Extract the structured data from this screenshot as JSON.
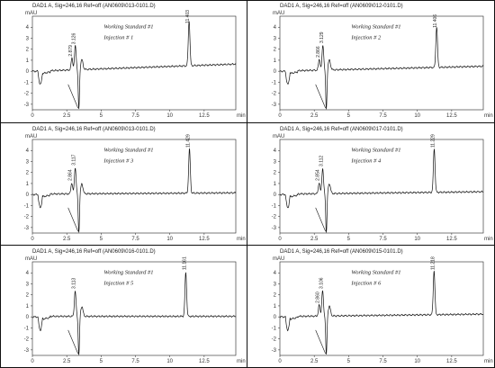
{
  "chart_data": [
    {
      "type": "line",
      "header": "DAD1 A, Sig=246,16 Ref=off (AN0609\\013-0101.D)",
      "ylabel": "mAU",
      "xlabel": "min",
      "annotation": [
        "Working Standard #1",
        "Injection # 1"
      ],
      "xlim": [
        0,
        14.8
      ],
      "ylim": [
        -3.5,
        5
      ],
      "xticks": [
        "0",
        "2.5",
        "5",
        "7.5",
        "10",
        "12.5"
      ],
      "yticks": [
        "-3",
        "-2",
        "-1",
        "0",
        "1",
        "2",
        "3",
        "4"
      ],
      "peaks": [
        {
          "rt": 2.879,
          "height": 1.1,
          "label": "2.879"
        },
        {
          "rt": 3.126,
          "height": 2.2,
          "label": "3.126"
        },
        {
          "rt": 11.403,
          "height": 4.1,
          "label": "11.403"
        }
      ],
      "baseline_end": 0.6
    },
    {
      "type": "line",
      "header": "DAD1 A, Sig=246,16 Ref=off (AN0609\\012-0101.D)",
      "ylabel": "mAU",
      "xlabel": "min",
      "annotation": [
        "Working Standard #1",
        "Injection # 2"
      ],
      "xlim": [
        0,
        14.8
      ],
      "ylim": [
        -3.5,
        5
      ],
      "xticks": [
        "0",
        "2.5",
        "5",
        "7.5",
        "10",
        "12.5"
      ],
      "yticks": [
        "-3",
        "-2",
        "-1",
        "0",
        "1",
        "2",
        "3",
        "4"
      ],
      "peaks": [
        {
          "rt": 2.866,
          "height": 1.0,
          "label": "2.866"
        },
        {
          "rt": 3.129,
          "height": 2.3,
          "label": "3.129"
        },
        {
          "rt": 11.406,
          "height": 3.7,
          "label": "11.406"
        }
      ],
      "baseline_end": 0.4
    },
    {
      "type": "line",
      "header": "DAD1 A, Sig=246,16 Ref=off (AN0609\\013-0101.D)",
      "ylabel": "mAU",
      "xlabel": "min",
      "annotation": [
        "Working Standard #1",
        "Injection # 3"
      ],
      "xlim": [
        0,
        14.8
      ],
      "ylim": [
        -3.5,
        5
      ],
      "xticks": [
        "0",
        "2.5",
        "5",
        "7.5",
        "10",
        "12.5"
      ],
      "yticks": [
        "-3",
        "-2",
        "-1",
        "0",
        "1",
        "2",
        "3",
        "4"
      ],
      "peaks": [
        {
          "rt": 2.864,
          "height": 1.0,
          "label": "2.864"
        },
        {
          "rt": 3.117,
          "height": 2.4,
          "label": "3.117"
        },
        {
          "rt": 11.429,
          "height": 4.0,
          "label": "11.429"
        }
      ],
      "baseline_end": 0.1
    },
    {
      "type": "line",
      "header": "DAD1 A, Sig=246,16 Ref=off (AN0609\\017-0101.D)",
      "ylabel": "mAU",
      "xlabel": "min",
      "annotation": [
        "Working Standard #1",
        "Injection # 4"
      ],
      "xlim": [
        0,
        14.8
      ],
      "ylim": [
        -3.5,
        5
      ],
      "xticks": [
        "0",
        "2.5",
        "5",
        "7.5",
        "10",
        "12.5"
      ],
      "yticks": [
        "-3",
        "-2",
        "-1",
        "0",
        "1",
        "2",
        "3",
        "4"
      ],
      "peaks": [
        {
          "rt": 2.854,
          "height": 1.0,
          "label": "2.854"
        },
        {
          "rt": 3.112,
          "height": 2.3,
          "label": "3.112"
        },
        {
          "rt": 11.229,
          "height": 4.0,
          "label": "11.229"
        }
      ],
      "baseline_end": 0.2
    },
    {
      "type": "line",
      "header": "DAD1 A, Sig=246,16 Ref=off (AN0609\\016-0101.D)",
      "ylabel": "mAU",
      "xlabel": "min",
      "annotation": [
        "Working Standard #1",
        "Injection # 5"
      ],
      "xlim": [
        0,
        14.8
      ],
      "ylim": [
        -3.5,
        5
      ],
      "xticks": [
        "0",
        "2.5",
        "5",
        "7.5",
        "10",
        "12.5"
      ],
      "yticks": [
        "-3",
        "-2",
        "-1",
        "0",
        "1",
        "2",
        "3",
        "4"
      ],
      "peaks": [
        {
          "rt": 3.113,
          "height": 2.3,
          "label": "3.113"
        },
        {
          "rt": 11.161,
          "height": 4.0,
          "label": "11.161"
        }
      ],
      "baseline_end": 0.0
    },
    {
      "type": "line",
      "header": "DAD1 A, Sig=246,16 Ref=off (AN0609\\015-0101.D)",
      "ylabel": "mAU",
      "xlabel": "min",
      "annotation": [
        "Working Standard #1",
        "Injection # 6"
      ],
      "xlim": [
        0,
        14.8
      ],
      "ylim": [
        -3.5,
        5
      ],
      "xticks": [
        "0",
        "2.5",
        "5",
        "7.5",
        "10",
        "12.5"
      ],
      "yticks": [
        "-3",
        "-2",
        "-1",
        "0",
        "1",
        "2",
        "3",
        "4"
      ],
      "peaks": [
        {
          "rt": 2.86,
          "height": 1.0,
          "label": "2.860"
        },
        {
          "rt": 3.106,
          "height": 2.3,
          "label": "3.106"
        },
        {
          "rt": 11.218,
          "height": 4.0,
          "label": "11.218"
        }
      ],
      "baseline_end": 0.2
    }
  ],
  "colors": {
    "line": "#111111",
    "axis": "#222222",
    "frame": "#111111"
  }
}
